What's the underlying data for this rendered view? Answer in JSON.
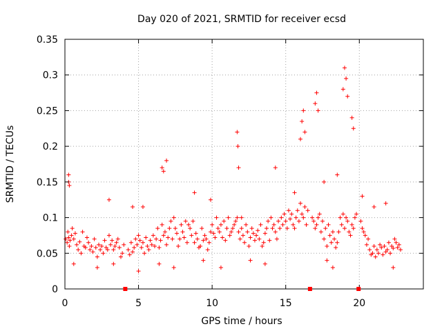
{
  "chart_data": {
    "type": "scatter",
    "title": "Day 020 of 2021, SRMTID for receiver ecsd",
    "xlabel": "GPS time / hours",
    "ylabel": "SRMTID / TECUs",
    "xlim": [
      0,
      24.35
    ],
    "ylim": [
      0,
      0.35
    ],
    "x_ticks": [
      0,
      5,
      10,
      15,
      20
    ],
    "x_tick_labels": [
      "0",
      "5",
      "10",
      "15",
      "20"
    ],
    "y_ticks": [
      0,
      0.05,
      0.1,
      0.15,
      0.2,
      0.25,
      0.3,
      0.35
    ],
    "y_tick_labels": [
      "0",
      "0.05",
      "0.1",
      "0.15",
      "0.2",
      "0.25",
      "0.3",
      "0.35"
    ],
    "grid": true,
    "marker": "+",
    "color": "#ff0000",
    "gap_markers_x": [
      4.1,
      16.65,
      19.95
    ],
    "series": [
      {
        "name": "SRMTID",
        "x": [
          0.05,
          0.15,
          0.2,
          0.25,
          0.3,
          0.35,
          0.45,
          0.5,
          0.6,
          0.7,
          0.8,
          0.9,
          1.0,
          1.1,
          1.2,
          1.3,
          1.4,
          1.5,
          1.6,
          1.7,
          1.8,
          1.9,
          2.0,
          2.1,
          2.2,
          2.3,
          2.4,
          2.5,
          2.6,
          2.7,
          2.8,
          2.9,
          3.0,
          3.1,
          3.2,
          3.3,
          3.4,
          3.5,
          3.6,
          3.7,
          3.8,
          3.9,
          4.0,
          4.3,
          4.4,
          4.5,
          4.6,
          4.7,
          4.8,
          4.9,
          5.0,
          5.1,
          5.2,
          5.3,
          5.4,
          5.5,
          5.6,
          5.7,
          5.8,
          5.9,
          6.0,
          6.1,
          6.2,
          6.3,
          6.4,
          6.5,
          6.6,
          6.7,
          6.8,
          6.9,
          7.0,
          7.1,
          7.2,
          7.3,
          7.4,
          7.5,
          7.6,
          7.7,
          7.8,
          7.9,
          8.0,
          8.1,
          8.2,
          8.3,
          8.4,
          8.5,
          8.6,
          8.7,
          8.8,
          8.9,
          9.0,
          9.1,
          9.2,
          9.3,
          9.4,
          9.5,
          9.6,
          9.7,
          9.8,
          9.9,
          10.0,
          10.1,
          10.2,
          10.3,
          10.4,
          10.5,
          10.6,
          10.7,
          10.8,
          10.9,
          11.0,
          11.1,
          11.2,
          11.3,
          11.4,
          11.5,
          11.6,
          11.7,
          11.8,
          11.9,
          12.0,
          12.1,
          12.2,
          12.3,
          12.4,
          12.5,
          12.6,
          12.7,
          12.8,
          12.9,
          13.0,
          13.1,
          13.2,
          13.3,
          13.4,
          13.5,
          13.6,
          13.7,
          13.8,
          13.9,
          14.0,
          14.1,
          14.2,
          14.3,
          14.4,
          14.5,
          14.6,
          14.7,
          14.8,
          14.9,
          15.0,
          15.1,
          15.2,
          15.3,
          15.4,
          15.5,
          15.6,
          15.7,
          15.8,
          15.9,
          16.0,
          16.1,
          16.2,
          16.3,
          16.4,
          16.5,
          16.8,
          16.9,
          17.0,
          17.1,
          17.2,
          17.3,
          17.4,
          17.5,
          17.6,
          17.7,
          17.8,
          17.9,
          18.0,
          18.1,
          18.2,
          18.3,
          18.4,
          18.5,
          18.6,
          18.7,
          18.8,
          18.9,
          19.0,
          19.1,
          19.2,
          19.3,
          19.4,
          19.5,
          19.6,
          19.7,
          19.8,
          20.1,
          20.2,
          20.3,
          20.4,
          20.5,
          20.6,
          20.7,
          20.8,
          20.9,
          21.0,
          21.1,
          21.2,
          21.3,
          21.4,
          21.5,
          21.6,
          21.7,
          21.8,
          21.9,
          22.0,
          22.1,
          22.2,
          22.3,
          22.4,
          22.5,
          22.6,
          22.7,
          22.8,
          0.25,
          0.25,
          0.3,
          6.6,
          6.7,
          6.9,
          11.7,
          11.75,
          11.8,
          16.0,
          16.1,
          16.2,
          16.3,
          17.0,
          17.1,
          17.2,
          18.9,
          19.0,
          19.1,
          19.2,
          19.5,
          19.6,
          3.0,
          4.6,
          5.3,
          8.8,
          9.9,
          14.3,
          15.6,
          17.6,
          18.5,
          20.2,
          21.0,
          21.8,
          0.6,
          2.2,
          3.3,
          5.0,
          6.4,
          7.4,
          9.4,
          10.6,
          12.6,
          13.6,
          17.8,
          18.2,
          22.3,
          12.0
        ],
        "y": [
          0.07,
          0.065,
          0.08,
          0.072,
          0.06,
          0.068,
          0.075,
          0.085,
          0.07,
          0.078,
          0.062,
          0.055,
          0.066,
          0.05,
          0.08,
          0.06,
          0.058,
          0.072,
          0.065,
          0.055,
          0.06,
          0.052,
          0.07,
          0.058,
          0.045,
          0.062,
          0.055,
          0.06,
          0.05,
          0.068,
          0.058,
          0.055,
          0.075,
          0.062,
          0.068,
          0.055,
          0.06,
          0.065,
          0.07,
          0.058,
          0.045,
          0.05,
          0.062,
          0.055,
          0.048,
          0.065,
          0.052,
          0.058,
          0.07,
          0.062,
          0.075,
          0.068,
          0.058,
          0.065,
          0.05,
          0.072,
          0.06,
          0.055,
          0.068,
          0.062,
          0.075,
          0.06,
          0.07,
          0.085,
          0.058,
          0.068,
          0.09,
          0.075,
          0.08,
          0.062,
          0.072,
          0.085,
          0.095,
          0.07,
          0.1,
          0.085,
          0.078,
          0.06,
          0.07,
          0.09,
          0.08,
          0.072,
          0.095,
          0.065,
          0.09,
          0.085,
          0.075,
          0.095,
          0.065,
          0.078,
          0.07,
          0.058,
          0.06,
          0.085,
          0.068,
          0.075,
          0.07,
          0.055,
          0.065,
          0.08,
          0.09,
          0.078,
          0.072,
          0.1,
          0.085,
          0.08,
          0.09,
          0.072,
          0.095,
          0.068,
          0.085,
          0.1,
          0.075,
          0.08,
          0.085,
          0.09,
          0.095,
          0.1,
          0.08,
          0.07,
          0.085,
          0.075,
          0.065,
          0.09,
          0.08,
          0.06,
          0.072,
          0.085,
          0.078,
          0.068,
          0.075,
          0.082,
          0.07,
          0.09,
          0.06,
          0.065,
          0.078,
          0.085,
          0.095,
          0.068,
          0.1,
          0.085,
          0.09,
          0.08,
          0.07,
          0.095,
          0.085,
          0.1,
          0.09,
          0.105,
          0.095,
          0.085,
          0.11,
          0.098,
          0.105,
          0.09,
          0.085,
          0.1,
          0.11,
          0.095,
          0.12,
          0.105,
          0.1,
          0.115,
          0.09,
          0.11,
          0.1,
          0.095,
          0.085,
          0.09,
          0.1,
          0.105,
          0.08,
          0.095,
          0.07,
          0.085,
          0.06,
          0.09,
          0.075,
          0.065,
          0.08,
          0.07,
          0.058,
          0.065,
          0.08,
          0.1,
          0.09,
          0.105,
          0.085,
          0.1,
          0.095,
          0.08,
          0.075,
          0.09,
          0.085,
          0.1,
          0.105,
          0.095,
          0.085,
          0.08,
          0.075,
          0.062,
          0.07,
          0.055,
          0.048,
          0.05,
          0.06,
          0.045,
          0.055,
          0.05,
          0.062,
          0.058,
          0.048,
          0.06,
          0.052,
          0.055,
          0.065,
          0.05,
          0.06,
          0.057,
          0.07,
          0.065,
          0.058,
          0.062,
          0.055,
          0.15,
          0.16,
          0.145,
          0.17,
          0.165,
          0.18,
          0.22,
          0.2,
          0.17,
          0.21,
          0.235,
          0.25,
          0.22,
          0.26,
          0.275,
          0.25,
          0.28,
          0.31,
          0.295,
          0.27,
          0.24,
          0.225,
          0.125,
          0.115,
          0.115,
          0.135,
          0.125,
          0.17,
          0.135,
          0.15,
          0.16,
          0.13,
          0.115,
          0.12,
          0.035,
          0.03,
          0.035,
          0.025,
          0.035,
          0.03,
          0.04,
          0.03,
          0.04,
          0.035,
          0.04,
          0.03,
          0.03,
          0.1
        ]
      }
    ]
  }
}
